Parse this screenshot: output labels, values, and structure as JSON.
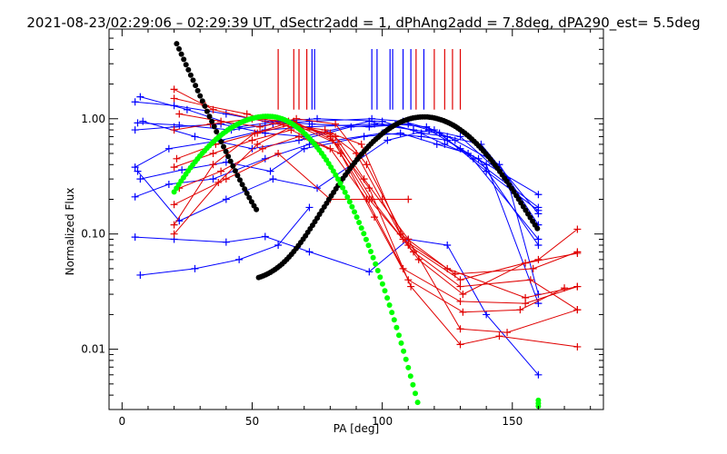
{
  "title": "2021-08-23/02:29:06 – 02:29:39 UT, dSectr2add = 1, dPhAng2add = 7.8deg, dPA290_est=  5.5deg",
  "chart_data": {
    "type": "line",
    "xlabel": "PA [deg]",
    "ylabel": "Normalized Flux",
    "xlim": [
      -5,
      185
    ],
    "ylim": [
      0.003,
      6.0
    ],
    "yscale": "log",
    "xticks": [
      0,
      50,
      100,
      150
    ],
    "xticklabels": [
      "0",
      "50",
      "100",
      "150"
    ],
    "yticks": [
      0.01,
      0.1,
      1.0
    ],
    "yticklabels": [
      "0.01",
      "0.10",
      "1.00"
    ],
    "grid": false,
    "colors": {
      "blue": "#0000ff",
      "red": "#e00000",
      "black": "#000000",
      "green": "#00ff00"
    },
    "vertical_markers": {
      "red": [
        60,
        66,
        68,
        71,
        113,
        120,
        124,
        127,
        130
      ],
      "blue": [
        73,
        74,
        96,
        98,
        103,
        104,
        108,
        111,
        116
      ]
    },
    "blue_series": [
      {
        "x": [
          5,
          20,
          40,
          55,
          73,
          95,
          110,
          118,
          130,
          160
        ],
        "y": [
          1.4,
          1.3,
          1.1,
          0.95,
          0.9,
          0.85,
          0.9,
          0.8,
          0.55,
          0.22
        ]
      },
      {
        "x": [
          7,
          25,
          45,
          60,
          75,
          100,
          115,
          125,
          138,
          160
        ],
        "y": [
          1.55,
          1.2,
          0.85,
          0.95,
          1.0,
          0.95,
          0.75,
          0.7,
          0.6,
          0.15
        ]
      },
      {
        "x": [
          6,
          22,
          42,
          58,
          72,
          96,
          108,
          120,
          135,
          160
        ],
        "y": [
          0.92,
          0.88,
          0.8,
          0.9,
          0.95,
          1.0,
          0.95,
          0.8,
          0.45,
          0.17
        ]
      },
      {
        "x": [
          5,
          20,
          38,
          55,
          70,
          95,
          112,
          122,
          140,
          160
        ],
        "y": [
          0.8,
          0.85,
          0.9,
          0.75,
          0.7,
          0.95,
          0.8,
          0.75,
          0.35,
          0.16
        ]
      },
      {
        "x": [
          8,
          28,
          50,
          68,
          88,
          105,
          117,
          128,
          145,
          160
        ],
        "y": [
          0.95,
          0.7,
          0.55,
          0.65,
          0.85,
          0.9,
          0.85,
          0.65,
          0.4,
          0.12
        ]
      },
      {
        "x": [
          5,
          18,
          38,
          55,
          72,
          97,
          112,
          124,
          137,
          160
        ],
        "y": [
          0.38,
          0.55,
          0.65,
          0.8,
          0.85,
          0.9,
          0.8,
          0.6,
          0.45,
          0.08
        ]
      },
      {
        "x": [
          7,
          23,
          40,
          57,
          70,
          93,
          107,
          121,
          133,
          160
        ],
        "y": [
          0.3,
          0.36,
          0.42,
          0.35,
          0.55,
          0.7,
          0.75,
          0.6,
          0.5,
          0.09
        ]
      },
      {
        "x": [
          5,
          18,
          35,
          55,
          72,
          100,
          115,
          125,
          140,
          160
        ],
        "y": [
          0.21,
          0.27,
          0.3,
          0.45,
          0.6,
          0.75,
          0.7,
          0.65,
          0.4,
          0.025
        ]
      },
      {
        "x": [
          6,
          22,
          40,
          58,
          75,
          102,
          118,
          130,
          148,
          160
        ],
        "y": [
          0.35,
          0.13,
          0.2,
          0.3,
          0.25,
          0.65,
          0.8,
          0.7,
          0.3,
          0.03
        ]
      },
      {
        "x": [
          5,
          20,
          40,
          55,
          72,
          95,
          110,
          125,
          140,
          160
        ],
        "y": [
          0.094,
          0.09,
          0.085,
          0.095,
          0.07,
          0.047,
          0.09,
          0.08,
          0.02,
          0.006
        ]
      },
      {
        "x": [
          7,
          28,
          45,
          60,
          72
        ],
        "y": [
          0.044,
          0.05,
          0.06,
          0.08,
          0.17
        ]
      }
    ],
    "red_series": [
      {
        "x": [
          20,
          35,
          50,
          65,
          80,
          92,
          107,
          125,
          155,
          175
        ],
        "y": [
          1.8,
          1.2,
          1.0,
          0.85,
          0.75,
          0.6,
          0.1,
          0.05,
          0.028,
          0.035
        ]
      },
      {
        "x": [
          20,
          32,
          48,
          62,
          78,
          90,
          108,
          128,
          158,
          175
        ],
        "y": [
          1.5,
          1.3,
          1.1,
          0.9,
          0.8,
          0.5,
          0.09,
          0.045,
          0.05,
          0.07
        ]
      },
      {
        "x": [
          22,
          38,
          53,
          67,
          82,
          94,
          110,
          130,
          160,
          175
        ],
        "y": [
          1.1,
          0.95,
          0.85,
          1.0,
          0.9,
          0.4,
          0.08,
          0.04,
          0.06,
          0.11
        ]
      },
      {
        "x": [
          20,
          34,
          50,
          64,
          80,
          95,
          112,
          130,
          157,
          175
        ],
        "y": [
          0.8,
          0.9,
          1.0,
          0.95,
          0.7,
          0.2,
          0.07,
          0.035,
          0.04,
          0.022
        ]
      },
      {
        "x": [
          21,
          36,
          52,
          66,
          83,
          96,
          114,
          131,
          155,
          175
        ],
        "y": [
          0.45,
          0.6,
          0.75,
          0.9,
          0.6,
          0.2,
          0.06,
          0.03,
          0.056,
          0.068
        ]
      },
      {
        "x": [
          20,
          35,
          50,
          65,
          80,
          94,
          108,
          130,
          155,
          175
        ],
        "y": [
          0.38,
          0.5,
          0.65,
          0.8,
          0.55,
          0.2,
          0.05,
          0.026,
          0.025,
          0.035
        ]
      },
      {
        "x": [
          22,
          38,
          54,
          68,
          84,
          97,
          110,
          131,
          153,
          170
        ],
        "y": [
          0.25,
          0.35,
          0.55,
          0.7,
          0.5,
          0.14,
          0.04,
          0.021,
          0.022,
          0.034
        ]
      },
      {
        "x": [
          20,
          37,
          52,
          67,
          82,
          93,
          110,
          130,
          148,
          175
        ],
        "y": [
          0.1,
          0.28,
          0.6,
          0.9,
          0.7,
          0.3,
          0.09,
          0.015,
          0.014,
          0.022
        ]
      },
      {
        "x": [
          20,
          35,
          51,
          66,
          81,
          95,
          111,
          130,
          145,
          175
        ],
        "y": [
          0.12,
          0.4,
          0.75,
          0.95,
          0.65,
          0.25,
          0.035,
          0.011,
          0.013,
          0.0105
        ]
      },
      {
        "x": [
          20,
          40,
          60,
          80,
          100,
          110
        ],
        "y": [
          0.18,
          0.3,
          0.5,
          0.2,
          0.2,
          0.2
        ]
      }
    ]
  }
}
